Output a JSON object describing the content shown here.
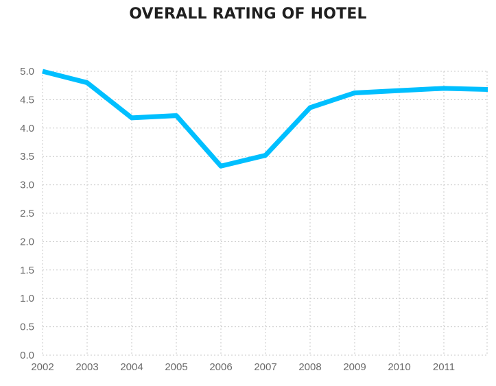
{
  "chart_data": {
    "type": "line",
    "title": "OVERALL RATING OF HOTEL",
    "xlabel": "",
    "ylabel": "",
    "x": [
      "2002",
      "2003",
      "2004",
      "2005",
      "2006",
      "2007",
      "2008",
      "2009",
      "2010",
      "2011",
      "2012"
    ],
    "x_tick_labels": [
      "2002",
      "2003",
      "2004",
      "2005",
      "2006",
      "2007",
      "2008",
      "2009",
      "2010",
      "2011"
    ],
    "y_tick_labels": [
      "0.0",
      "0.5",
      "1.0",
      "1.5",
      "2.0",
      "2.5",
      "3.0",
      "3.5",
      "4.0",
      "4.5",
      "5.0"
    ],
    "series": [
      {
        "values": [
          5.0,
          4.8,
          4.18,
          4.22,
          3.33,
          3.52,
          4.36,
          4.62,
          4.66,
          4.7,
          4.68
        ]
      }
    ],
    "ylim": [
      0,
      5.0
    ],
    "grid": true,
    "legend": "none",
    "line_color": "#00bfff",
    "grid_color": "#c8c8c8"
  }
}
